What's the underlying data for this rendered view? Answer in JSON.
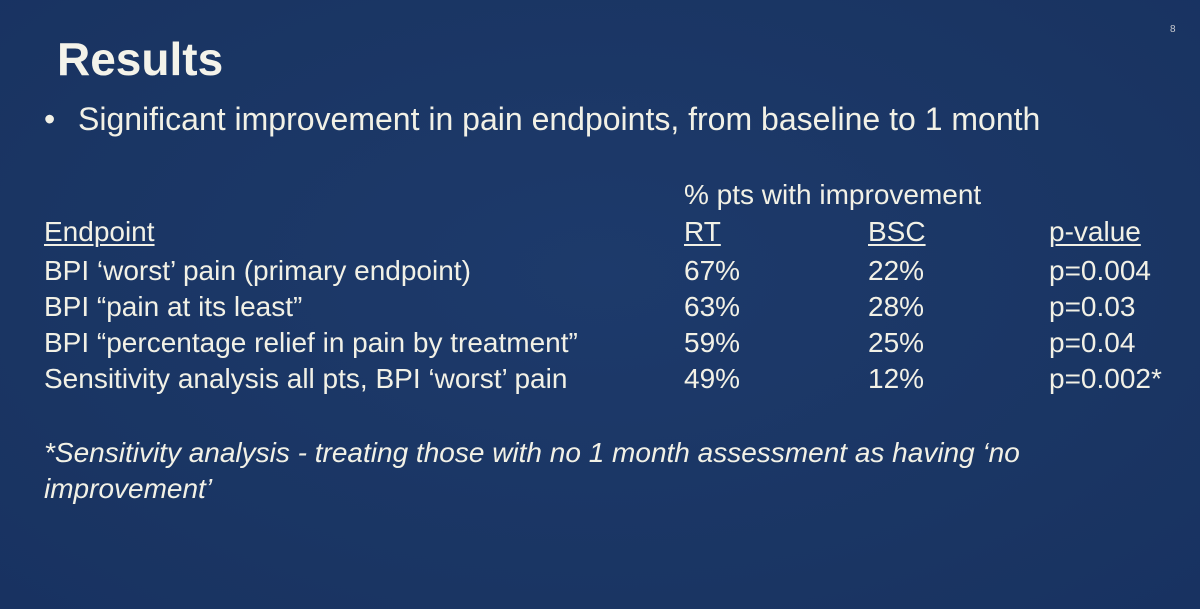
{
  "page_number": "8",
  "title": "Results",
  "bullet": {
    "symbol": "•",
    "text": "Significant improvement in pain endpoints, from baseline to 1 month"
  },
  "table": {
    "group_header": "% pts with improvement",
    "headers": {
      "endpoint": "Endpoint",
      "rt": "RT",
      "bsc": "BSC",
      "p": "p-value"
    },
    "rows": [
      {
        "endpoint": "BPI ‘worst’ pain (primary endpoint)",
        "rt": "67%",
        "bsc": "22%",
        "p": "p=0.004"
      },
      {
        "endpoint": "BPI “pain at its least”",
        "rt": "63%",
        "bsc": "28%",
        "p": "p=0.03"
      },
      {
        "endpoint": "BPI “percentage relief in pain by treatment”",
        "rt": "59%",
        "bsc": "25%",
        "p": "p=0.04"
      },
      {
        "endpoint": "Sensitivity analysis all pts, BPI ‘worst’ pain",
        "rt": "49%",
        "bsc": "12%",
        "p": "p=0.002*"
      }
    ]
  },
  "footnote": "*Sensitivity analysis - treating those with no 1 month assessment as having ‘no improvement’",
  "colors": {
    "background": "#1b3766",
    "text": "#f2f1e6"
  }
}
